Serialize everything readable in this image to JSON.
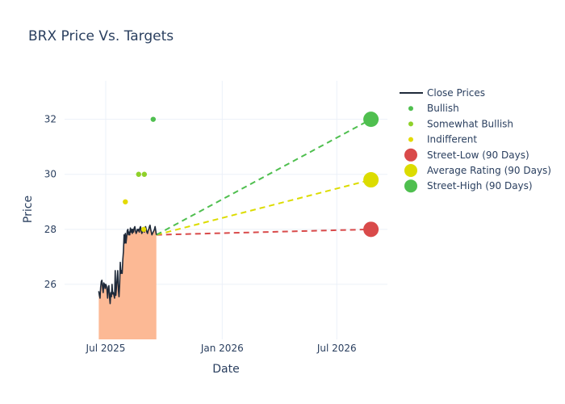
{
  "chart_data": {
    "type": "line",
    "title": "BRX Price Vs. Targets",
    "xlabel": "Date",
    "ylabel": "Price",
    "x_range": [
      "2025-04-27",
      "2026-09-19"
    ],
    "ylim": [
      24,
      33.4
    ],
    "x_ticks": [
      {
        "date": "2025-07-01",
        "label": "Jul 2025"
      },
      {
        "date": "2026-01-01",
        "label": "Jan 2026"
      },
      {
        "date": "2026-07-01",
        "label": "Jul 2026"
      }
    ],
    "y_ticks": [
      {
        "value": 26,
        "label": "26"
      },
      {
        "value": 28,
        "label": "28"
      },
      {
        "value": 30,
        "label": "30"
      },
      {
        "value": 32,
        "label": "32"
      }
    ],
    "grid": true,
    "legend_position": "right",
    "close_prices": {
      "name": "Close Prices",
      "color": "#1f2a3a",
      "fill_color": "#fcb995",
      "x": [
        "2025-06-20",
        "2025-06-21",
        "2025-06-22",
        "2025-06-23",
        "2025-06-24",
        "2025-06-25",
        "2025-06-26",
        "2025-06-27",
        "2025-06-28",
        "2025-06-29",
        "2025-06-30",
        "2025-07-01",
        "2025-07-02",
        "2025-07-03",
        "2025-07-04",
        "2025-07-05",
        "2025-07-06",
        "2025-07-07",
        "2025-07-08",
        "2025-07-09",
        "2025-07-10",
        "2025-07-11",
        "2025-07-12",
        "2025-07-13",
        "2025-07-14",
        "2025-07-15",
        "2025-07-16",
        "2025-07-17",
        "2025-07-18",
        "2025-07-19",
        "2025-07-20",
        "2025-07-21",
        "2025-07-22",
        "2025-07-23",
        "2025-07-24",
        "2025-07-25",
        "2025-07-26",
        "2025-07-27",
        "2025-07-28",
        "2025-07-29",
        "2025-07-30",
        "2025-07-31",
        "2025-08-01",
        "2025-08-02",
        "2025-08-03",
        "2025-08-04",
        "2025-08-05",
        "2025-08-06",
        "2025-08-07",
        "2025-08-08",
        "2025-08-09",
        "2025-08-10",
        "2025-08-11",
        "2025-08-12",
        "2025-08-13",
        "2025-08-14",
        "2025-08-15",
        "2025-08-16",
        "2025-08-17",
        "2025-08-18",
        "2025-08-19",
        "2025-08-20",
        "2025-08-21",
        "2025-08-22",
        "2025-08-23",
        "2025-08-24",
        "2025-08-25",
        "2025-08-26",
        "2025-08-27",
        "2025-08-28",
        "2025-08-29",
        "2025-08-30",
        "2025-08-31",
        "2025-09-01",
        "2025-09-02",
        "2025-09-03",
        "2025-09-04",
        "2025-09-05",
        "2025-09-06",
        "2025-09-07",
        "2025-09-08",
        "2025-09-09",
        "2025-09-10",
        "2025-09-11",
        "2025-09-12",
        "2025-09-13",
        "2025-09-14",
        "2025-09-15",
        "2025-09-16",
        "2025-09-17",
        "2025-09-18",
        "2025-09-19"
      ],
      "y": [
        25.75,
        25.6,
        25.5,
        25.9,
        26.1,
        26.15,
        25.9,
        25.7,
        26.05,
        26.0,
        25.85,
        26.0,
        25.95,
        25.8,
        25.5,
        25.9,
        25.95,
        25.55,
        25.3,
        25.7,
        25.55,
        26.0,
        25.65,
        25.7,
        25.6,
        25.5,
        26.5,
        25.6,
        25.9,
        26.2,
        26.5,
        25.8,
        25.55,
        26.0,
        26.8,
        26.4,
        26.5,
        26.4,
        26.9,
        27.2,
        27.8,
        27.5,
        27.85,
        27.5,
        27.7,
        27.95,
        28.0,
        27.8,
        27.9,
        27.8,
        28.05,
        27.9,
        28.0,
        27.85,
        28.0,
        27.9,
        28.05,
        28.1,
        27.95,
        27.85,
        27.9,
        28.0,
        27.95,
        28.0,
        27.9,
        28.05,
        28.1,
        27.95,
        27.85,
        27.9,
        27.95,
        28.0,
        27.9,
        28.05,
        28.1,
        28.0,
        27.9,
        27.85,
        27.95,
        28.0,
        28.1,
        28.15,
        28.0,
        27.9,
        27.8,
        27.85,
        27.9,
        27.95,
        28.0,
        28.1,
        27.95,
        27.8
      ]
    },
    "analyst_ratings": [
      {
        "name": "Bullish",
        "color": "#4fbf4f",
        "points": [
          {
            "x": "2025-09-14",
            "y": 32
          }
        ]
      },
      {
        "name": "Somewhat Bullish",
        "color": "#8fd12a",
        "points": [
          {
            "x": "2025-08-22",
            "y": 30
          },
          {
            "x": "2025-08-31",
            "y": 30
          }
        ]
      },
      {
        "name": "Indifferent",
        "color": "#e3da00",
        "points": [
          {
            "x": "2025-08-01",
            "y": 29
          },
          {
            "x": "2025-08-30",
            "y": 28
          }
        ]
      }
    ],
    "targets": [
      {
        "name": "Street-Low (90 Days)",
        "color": "#d94a4a",
        "start": {
          "x": "2025-09-19",
          "y": 27.8
        },
        "end": {
          "x": "2026-08-24",
          "y": 28
        }
      },
      {
        "name": "Average Rating (90 Days)",
        "color": "#dcdc00",
        "start": {
          "x": "2025-09-19",
          "y": 27.8
        },
        "end": {
          "x": "2026-08-24",
          "y": 29.8
        }
      },
      {
        "name": "Street-High (90 Days)",
        "color": "#4fbf4f",
        "start": {
          "x": "2025-09-19",
          "y": 27.8
        },
        "end": {
          "x": "2026-08-24",
          "y": 32
        }
      }
    ]
  }
}
